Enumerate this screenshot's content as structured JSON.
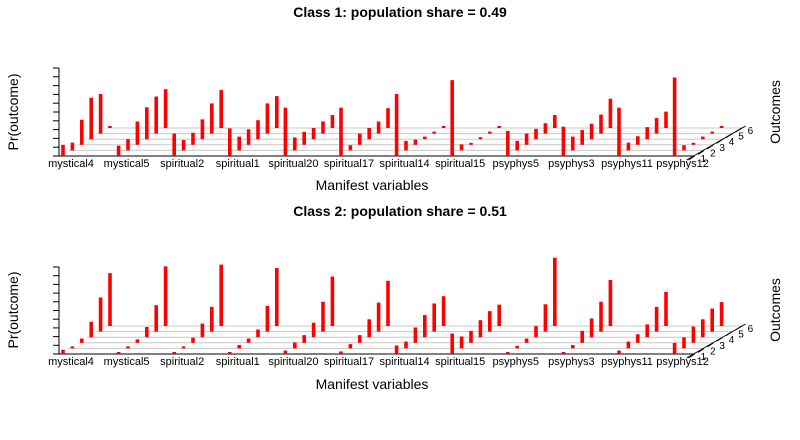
{
  "chart_data": [
    {
      "type": "bar",
      "title": "Class 1: population share = 0.49",
      "xlabel": "Manifest variables",
      "ylabel": "Pr(outcome)",
      "zlabel": "Outcomes",
      "categories": [
        "mystical4",
        "mystical5",
        "spiritual2",
        "spiritual1",
        "spiritual20",
        "spiritual17",
        "spiritual14",
        "spiritual15",
        "psyphys5",
        "psyphys3",
        "psyphys11",
        "psyphys12"
      ],
      "outcomes": [
        "1",
        "2",
        "3",
        "4",
        "5",
        "6"
      ],
      "values": [
        [
          0.13,
          0.09,
          0.29,
          0.48,
          0.46,
          0.0
        ],
        [
          0.12,
          0.13,
          0.27,
          0.37,
          0.43,
          0.45
        ],
        [
          0.26,
          0.12,
          0.14,
          0.23,
          0.35,
          0.44
        ],
        [
          0.32,
          0.16,
          0.18,
          0.22,
          0.35,
          0.37
        ],
        [
          0.56,
          0.15,
          0.15,
          0.13,
          0.14,
          0.15
        ],
        [
          0.56,
          0.06,
          0.13,
          0.13,
          0.14,
          0.23
        ],
        [
          0.72,
          0.11,
          0.06,
          0.03,
          0.02,
          0.02
        ],
        [
          0.88,
          0.07,
          0.01,
          0.01,
          0.01,
          0.01
        ],
        [
          0.29,
          0.11,
          0.13,
          0.12,
          0.12,
          0.15
        ],
        [
          0.34,
          0.16,
          0.17,
          0.18,
          0.22,
          0.34
        ],
        [
          0.56,
          0.09,
          0.1,
          0.14,
          0.18,
          0.19
        ],
        [
          0.91,
          0.06,
          0.02,
          0.03,
          0.02,
          0.02
        ]
      ],
      "ylim": [
        0,
        1
      ],
      "grid": true
    },
    {
      "type": "bar",
      "title": "Class 2: population share = 0.51",
      "xlabel": "Manifest variables",
      "ylabel": "Pr(outcome)",
      "zlabel": "Outcomes",
      "categories": [
        "mystical4",
        "mystical5",
        "spiritual2",
        "spiritual1",
        "spiritual20",
        "spiritual17",
        "spiritual14",
        "spiritual15",
        "psyphys5",
        "psyphys3",
        "psyphys11",
        "psyphys12"
      ],
      "outcomes": [
        "1",
        "2",
        "3",
        "4",
        "5",
        "6"
      ],
      "values": [
        [
          0.05,
          0.01,
          0.05,
          0.18,
          0.4,
          0.62
        ],
        [
          0.01,
          0.02,
          0.04,
          0.12,
          0.31,
          0.7
        ],
        [
          0.01,
          0.02,
          0.06,
          0.16,
          0.29,
          0.72
        ],
        [
          0.02,
          0.04,
          0.05,
          0.09,
          0.3,
          0.68
        ],
        [
          0.04,
          0.07,
          0.09,
          0.17,
          0.35,
          0.58
        ],
        [
          0.03,
          0.05,
          0.09,
          0.21,
          0.34,
          0.53
        ],
        [
          0.1,
          0.08,
          0.18,
          0.26,
          0.33,
          0.35
        ],
        [
          0.24,
          0.14,
          0.14,
          0.2,
          0.24,
          0.25
        ],
        [
          0.01,
          0.03,
          0.05,
          0.13,
          0.32,
          0.8
        ],
        [
          0.01,
          0.04,
          0.14,
          0.22,
          0.35,
          0.54
        ],
        [
          0.04,
          0.08,
          0.1,
          0.15,
          0.29,
          0.4
        ],
        [
          0.13,
          0.13,
          0.19,
          0.21,
          0.27,
          0.28
        ]
      ],
      "ylim": [
        0,
        1
      ],
      "grid": true
    }
  ]
}
